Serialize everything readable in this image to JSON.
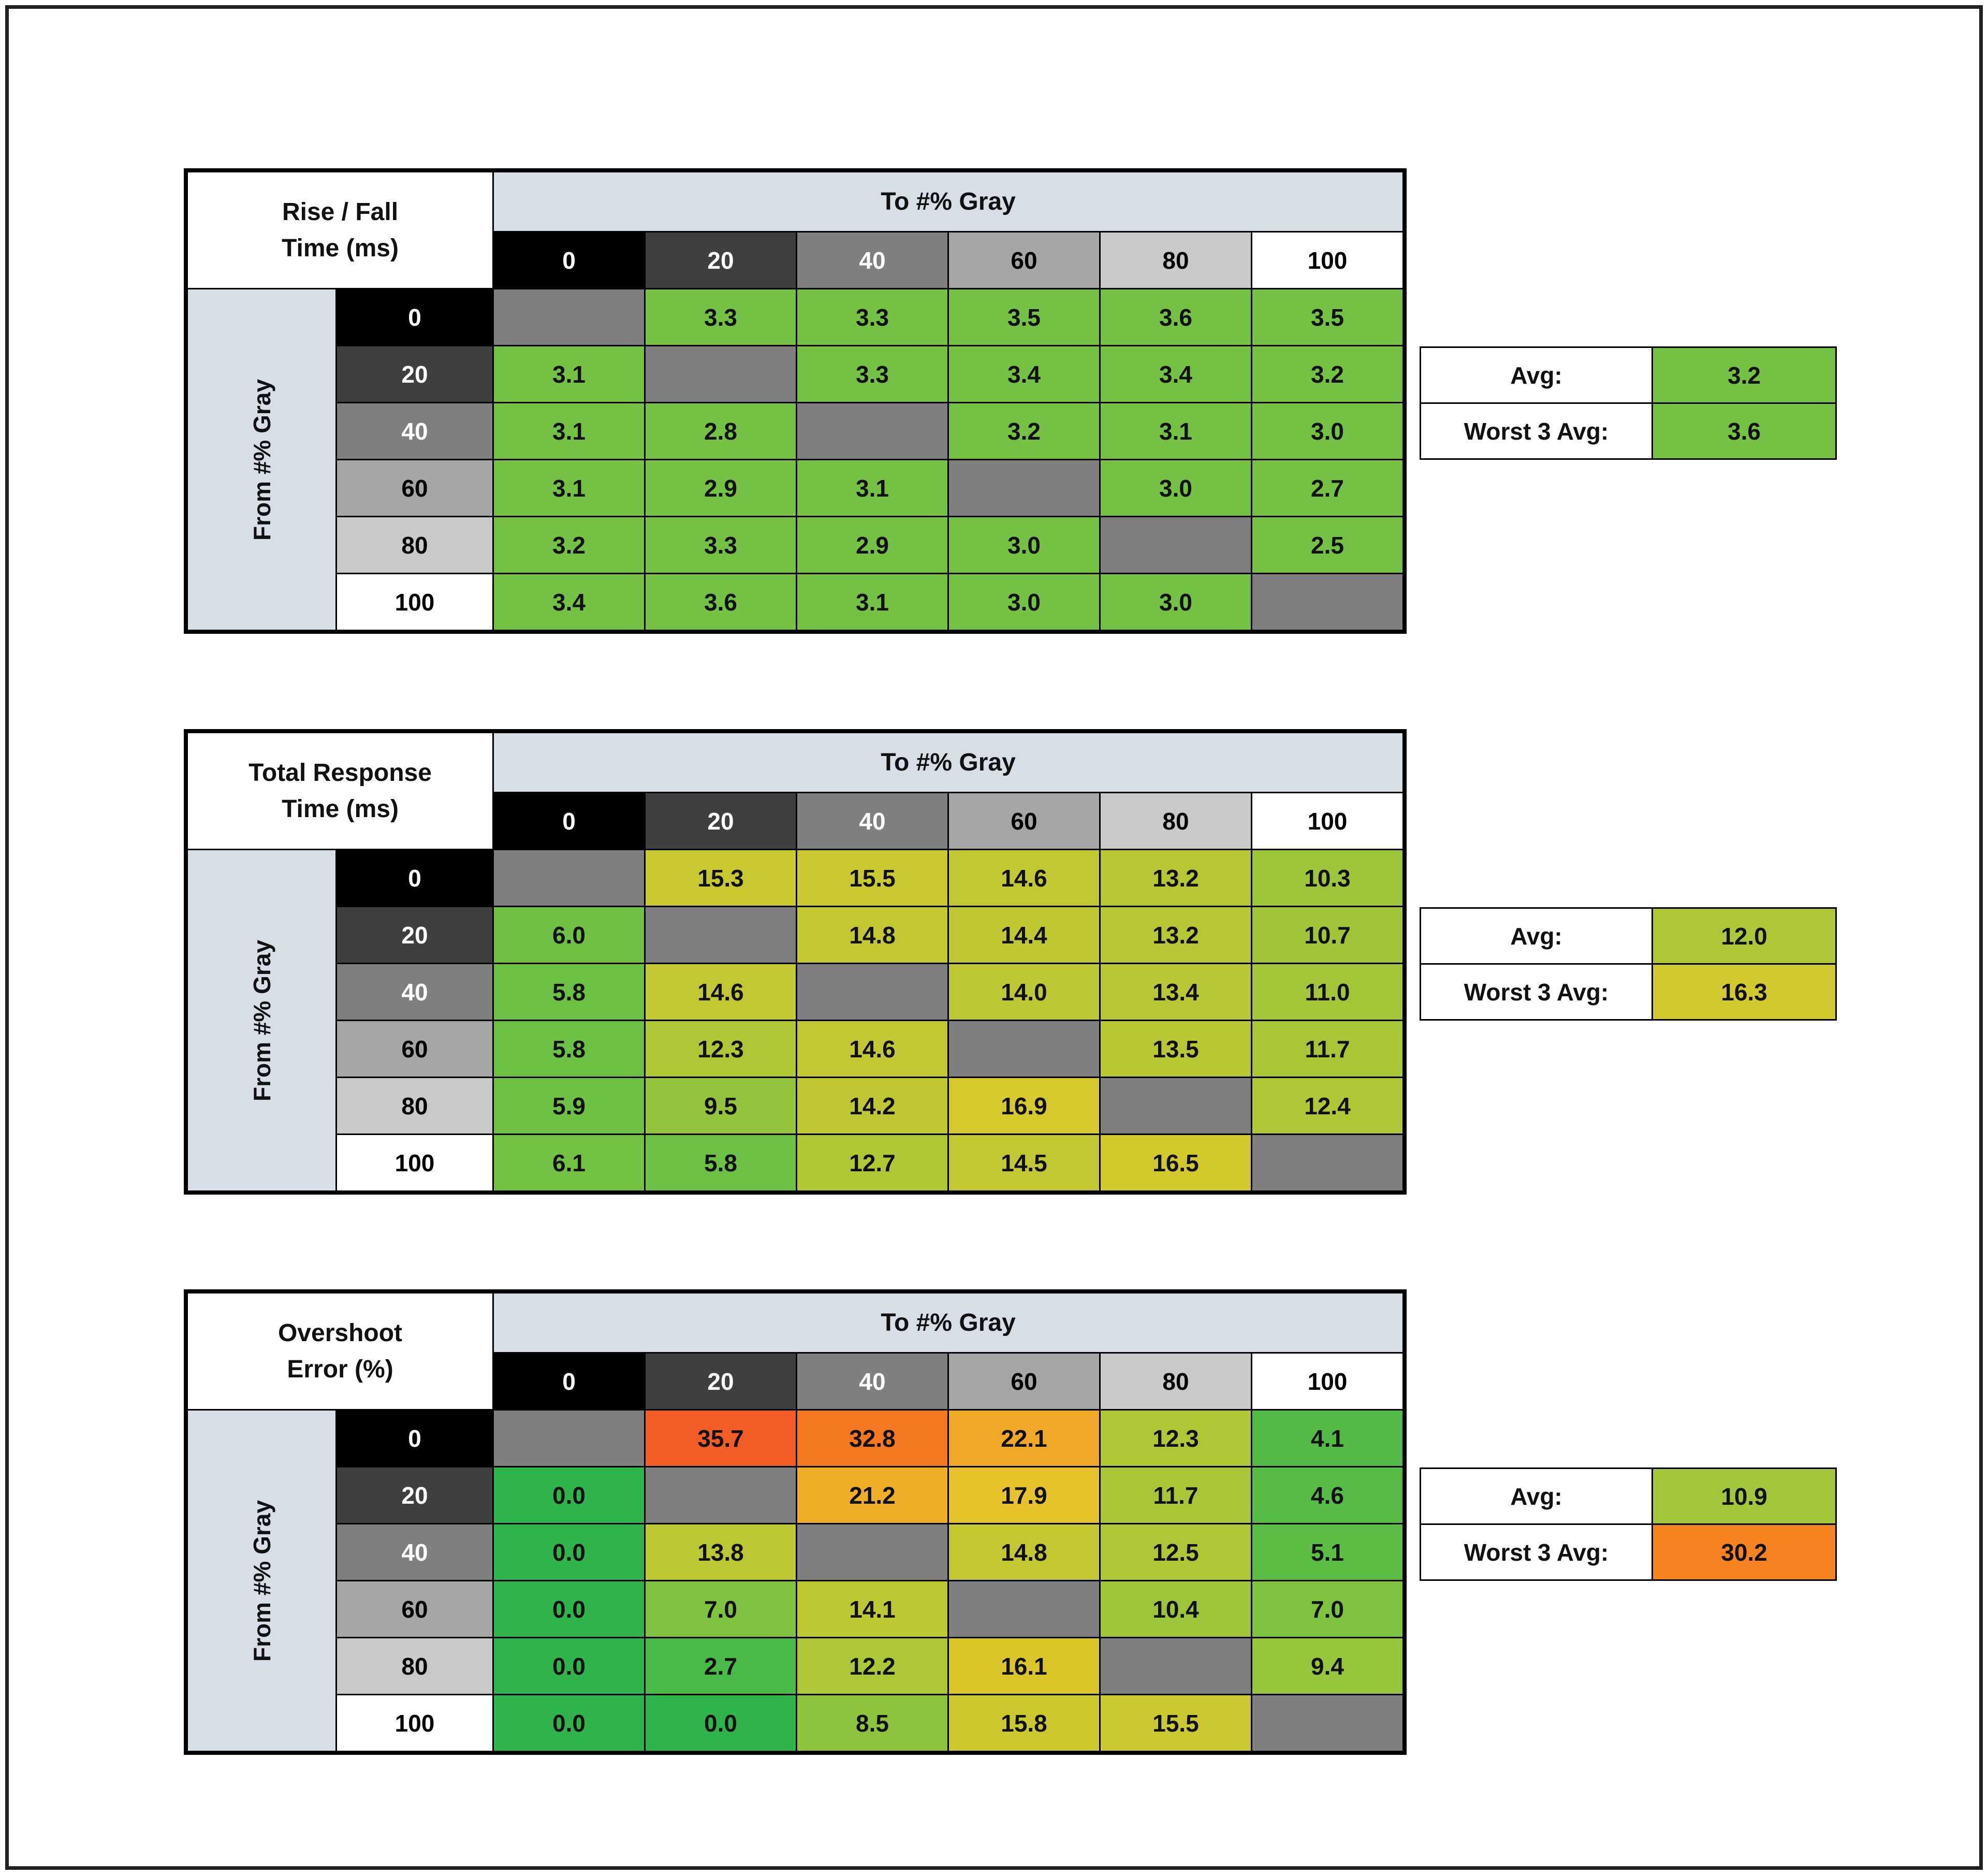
{
  "canvas": {
    "bg": "#FFFFFF",
    "frame_color": "#212121"
  },
  "shared": {
    "to_gray_label": "To #% Gray",
    "from_gray_label": "From #% Gray",
    "axis_values": [
      "0",
      "20",
      "40",
      "60",
      "80",
      "100"
    ],
    "header_bg": [
      "#000000",
      "#3F3F3F",
      "#7F7F7F",
      "#A6A6A6",
      "#C9C9C9",
      "#FFFFFF"
    ],
    "header_fg": [
      "#FFFFFF",
      "#FFFFFF",
      "#FFFFFF",
      "#000000",
      "#000000",
      "#000000"
    ],
    "banner_bg": "#D7DEE6",
    "diagonal_bg": "#7F7F7F",
    "avg_label": "Avg:",
    "worst_label": "Worst 3 Avg:"
  },
  "chart_data": {
    "type": "heatmap",
    "tables": [
      {
        "id": "rise-fall-time",
        "title_lines": [
          "Rise / Fall",
          "Time (ms)"
        ],
        "xlabel": "To #% Gray",
        "ylabel": "From #% Gray",
        "x": [
          0,
          20,
          40,
          60,
          80,
          100
        ],
        "y": [
          0,
          20,
          40,
          60,
          80,
          100
        ],
        "values": [
          [
            null,
            3.3,
            3.3,
            3.5,
            3.6,
            3.5
          ],
          [
            3.1,
            null,
            3.3,
            3.4,
            3.4,
            3.2
          ],
          [
            3.1,
            2.8,
            null,
            3.2,
            3.1,
            3.0
          ],
          [
            3.1,
            2.9,
            3.1,
            null,
            3.0,
            2.7
          ],
          [
            3.2,
            3.3,
            2.9,
            3.0,
            null,
            2.5
          ],
          [
            3.4,
            3.6,
            3.1,
            3.0,
            3.0,
            null
          ]
        ],
        "avg": 3.2,
        "worst3_avg": 3.6
      },
      {
        "id": "total-response-time",
        "title_lines": [
          "Total Response",
          "Time (ms)"
        ],
        "xlabel": "To #% Gray",
        "ylabel": "From #% Gray",
        "x": [
          0,
          20,
          40,
          60,
          80,
          100
        ],
        "y": [
          0,
          20,
          40,
          60,
          80,
          100
        ],
        "values": [
          [
            null,
            15.3,
            15.5,
            14.6,
            13.2,
            10.3
          ],
          [
            6.0,
            null,
            14.8,
            14.4,
            13.2,
            10.7
          ],
          [
            5.8,
            14.6,
            null,
            14.0,
            13.4,
            11.0
          ],
          [
            5.8,
            12.3,
            14.6,
            null,
            13.5,
            11.7
          ],
          [
            5.9,
            9.5,
            14.2,
            16.9,
            null,
            12.4
          ],
          [
            6.1,
            5.8,
            12.7,
            14.5,
            16.5,
            null
          ]
        ],
        "avg": 12.0,
        "worst3_avg": 16.3
      },
      {
        "id": "overshoot-error",
        "title_lines": [
          "Overshoot",
          "Error (%)"
        ],
        "xlabel": "To #% Gray",
        "ylabel": "From #% Gray",
        "x": [
          0,
          20,
          40,
          60,
          80,
          100
        ],
        "y": [
          0,
          20,
          40,
          60,
          80,
          100
        ],
        "values": [
          [
            null,
            35.7,
            32.8,
            22.1,
            12.3,
            4.1
          ],
          [
            0.0,
            null,
            21.2,
            17.9,
            11.7,
            4.6
          ],
          [
            0.0,
            13.8,
            null,
            14.8,
            12.5,
            5.1
          ],
          [
            0.0,
            7.0,
            14.1,
            null,
            10.4,
            7.0
          ],
          [
            0.0,
            2.7,
            12.2,
            16.1,
            null,
            9.4
          ],
          [
            0.0,
            0.0,
            8.5,
            15.8,
            15.5,
            null
          ]
        ],
        "avg": 10.9,
        "worst3_avg": 30.2
      }
    ]
  },
  "render": {
    "color_maps": [
      {
        "2.5": "#74C144",
        "2.7": "#74C144",
        "2.8": "#74C144",
        "2.9": "#74C144",
        "3.0": "#74C144",
        "3.1": "#74C144",
        "3.2": "#74C144",
        "3.3": "#74C144",
        "3.4": "#74C144",
        "3.5": "#74C144",
        "3.6": "#74C144"
      },
      {
        "5.8": "#6CC144",
        "5.9": "#6EC143",
        "6.0": "#70C143",
        "6.1": "#72C142",
        "9.5": "#93C43C",
        "10.3": "#9CC53A",
        "10.7": "#A0C539",
        "11.0": "#A3C638",
        "11.7": "#A9C637",
        "12.0": "#ADC736",
        "12.3": "#AFC735",
        "12.4": "#B0C735",
        "12.7": "#B2C734",
        "13.2": "#B6C733",
        "13.4": "#B8C733",
        "13.5": "#B9C733",
        "14.0": "#BDC832",
        "14.2": "#BFC832",
        "14.4": "#C0C831",
        "14.5": "#C1C831",
        "14.6": "#C2C831",
        "14.8": "#C4C830",
        "15.3": "#C8C92F",
        "15.5": "#CAC92F",
        "16.3": "#D1C92D",
        "16.5": "#D2C92C",
        "16.9": "#D5C92B"
      },
      {
        "0.0": "#2FB44C",
        "2.7": "#49BA48",
        "4.1": "#53BB45",
        "4.6": "#57BC45",
        "5.1": "#5BBD44",
        "7.0": "#7EC33F",
        "8.5": "#8EC43D",
        "9.4": "#97C53B",
        "10.4": "#9DC53A",
        "10.9": "#A2C639",
        "11.7": "#A9C637",
        "12.2": "#AEC736",
        "12.3": "#AFC735",
        "12.5": "#B0C735",
        "13.8": "#BBC832",
        "14.1": "#BEC832",
        "14.8": "#C4C830",
        "15.5": "#CAC92F",
        "15.8": "#CCC92E",
        "16.1": "#DBC62A",
        "17.9": "#E6C22B",
        "21.2": "#EFAE27",
        "22.1": "#F0A827",
        "30.2": "#F48320",
        "32.8": "#F4781F",
        "35.7": "#F25D25"
      }
    ]
  }
}
